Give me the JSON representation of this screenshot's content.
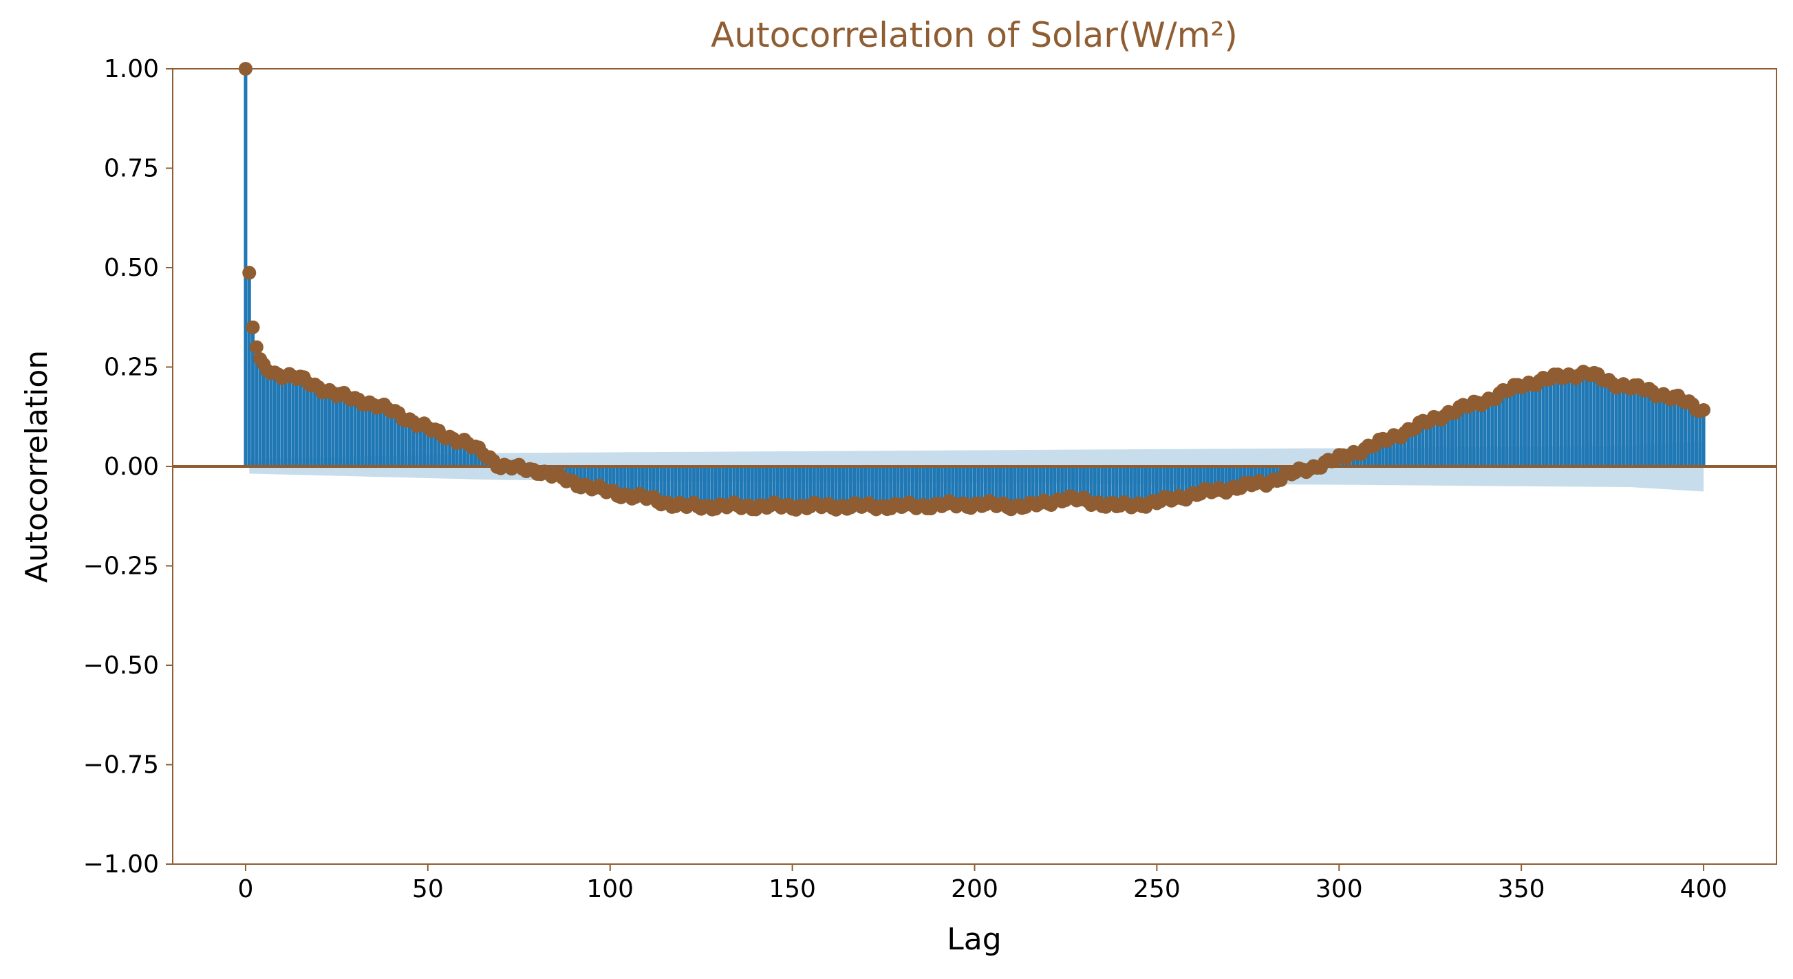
{
  "chart_data": {
    "type": "stem",
    "title": "Autocorrelation of Solar(W/m²)",
    "xlabel": "Lag",
    "ylabel": "Autocorrelation",
    "xlim": [
      -20,
      420
    ],
    "ylim": [
      -1.0,
      1.0
    ],
    "x_ticks": [
      0,
      50,
      100,
      150,
      200,
      250,
      300,
      350,
      400
    ],
    "x_tick_labels": [
      "0",
      "50",
      "100",
      "150",
      "200",
      "250",
      "300",
      "350",
      "400"
    ],
    "y_ticks": [
      1.0,
      0.75,
      0.5,
      0.25,
      0.0,
      -0.25,
      -0.5,
      -0.75,
      -1.0
    ],
    "y_tick_labels": [
      "1.00",
      "0.75",
      "0.50",
      "0.25",
      "0.00",
      "−0.25",
      "−0.50",
      "−0.75",
      "−1.00"
    ],
    "grid": false,
    "max_lag": 400,
    "acf_anchors": [
      [
        0,
        1.0
      ],
      [
        1,
        0.487
      ],
      [
        2,
        0.35
      ],
      [
        3,
        0.3
      ],
      [
        4,
        0.27
      ],
      [
        5,
        0.25
      ],
      [
        8,
        0.235
      ],
      [
        15,
        0.22
      ],
      [
        25,
        0.18
      ],
      [
        32,
        0.165
      ],
      [
        40,
        0.14
      ],
      [
        50,
        0.095
      ],
      [
        60,
        0.06
      ],
      [
        66,
        0.03
      ],
      [
        70,
        0.0
      ],
      [
        80,
        -0.01
      ],
      [
        90,
        -0.04
      ],
      [
        100,
        -0.065
      ],
      [
        110,
        -0.08
      ],
      [
        120,
        -0.1
      ],
      [
        140,
        -0.1
      ],
      [
        160,
        -0.1
      ],
      [
        180,
        -0.1
      ],
      [
        200,
        -0.095
      ],
      [
        215,
        -0.1
      ],
      [
        225,
        -0.08
      ],
      [
        240,
        -0.1
      ],
      [
        250,
        -0.09
      ],
      [
        260,
        -0.07
      ],
      [
        270,
        -0.055
      ],
      [
        280,
        -0.04
      ],
      [
        290,
        -0.01
      ],
      [
        300,
        0.02
      ],
      [
        310,
        0.055
      ],
      [
        320,
        0.095
      ],
      [
        330,
        0.135
      ],
      [
        340,
        0.165
      ],
      [
        350,
        0.205
      ],
      [
        360,
        0.225
      ],
      [
        368,
        0.235
      ],
      [
        375,
        0.21
      ],
      [
        385,
        0.19
      ],
      [
        393,
        0.17
      ],
      [
        400,
        0.14
      ]
    ],
    "confidence_band": [
      [
        1,
        0.018
      ],
      [
        70,
        0.034
      ],
      [
        300,
        0.046
      ],
      [
        380,
        0.052
      ],
      [
        400,
        0.063
      ]
    ],
    "colors": {
      "stem": "#1f77b4",
      "marker": "#8f5d31",
      "band": "#1f77b4",
      "axes": "#8f5d31",
      "title": "#8f5d31",
      "text": "#000000"
    }
  }
}
